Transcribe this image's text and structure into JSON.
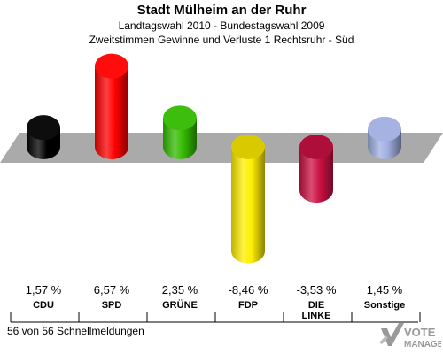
{
  "title": "Stadt Mülheim an der Ruhr",
  "subtitle": "Landtagswahl 2010 - Bundestagswahl 2009",
  "subtitle2": "Zweitstimmen Gewinne und Verluste 1 Rechtsruhr - Süd",
  "footer": "56 von 56 Schnellmeldungen",
  "logo": {
    "text": "VOTE",
    "subtext": "MANAGER",
    "icon": "vote-check-icon"
  },
  "colors": {
    "CDU": "#000000",
    "SPD": "#ff0000",
    "GRÜNE": "#33bb00",
    "FDP": "#ffee00",
    "DIE LINKE": "#cc1144",
    "Sonstige": "#a0aee0",
    "baseline": "#aaaaaa"
  },
  "chart_data": {
    "type": "bar",
    "title": "Stadt Mülheim an der Ruhr",
    "subtitle": "Landtagswahl 2010 - Bundestagswahl 2009",
    "categories": [
      "CDU",
      "SPD",
      "GRÜNE",
      "FDP",
      "DIE LINKE",
      "Sonstige"
    ],
    "category_lines": [
      [
        "CDU"
      ],
      [
        "SPD"
      ],
      [
        "GRÜNE"
      ],
      [
        "FDP"
      ],
      [
        "DIE",
        "LINKE"
      ],
      [
        "Sonstige"
      ]
    ],
    "values": [
      1.57,
      6.57,
      2.35,
      -8.46,
      -3.53,
      1.45
    ],
    "value_labels": [
      "1,57 %",
      "6,57 %",
      "2,35 %",
      "-8,46 %",
      "-3,53 %",
      "1,45 %"
    ],
    "unit": "%",
    "grid": false,
    "legend": "none"
  }
}
